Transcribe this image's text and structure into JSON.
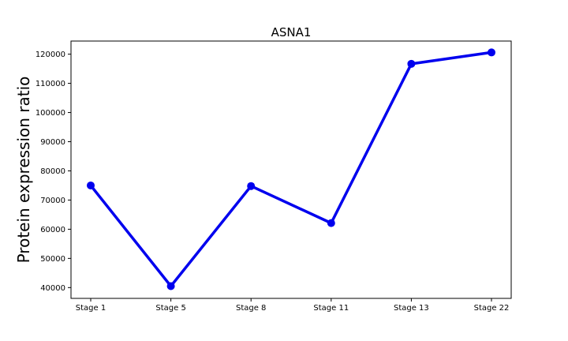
{
  "chart_data": {
    "type": "line",
    "title": "ASNA1",
    "xlabel": "",
    "ylabel": "Protein expression ratio",
    "categories": [
      "Stage 1",
      "Stage 5",
      "Stage 8",
      "Stage 11",
      "Stage 13",
      "Stage 22"
    ],
    "series": [
      {
        "name": "ASNA1",
        "values": [
          75000,
          40500,
          74800,
          62100,
          116700,
          120600
        ]
      }
    ],
    "yticks": [
      40000,
      50000,
      60000,
      70000,
      80000,
      90000,
      100000,
      110000,
      120000
    ],
    "ylim": [
      36300,
      124500
    ],
    "grid": false,
    "colors": {
      "line": "#0000ee",
      "marker": "#0000ee",
      "axes": "#000000"
    }
  }
}
